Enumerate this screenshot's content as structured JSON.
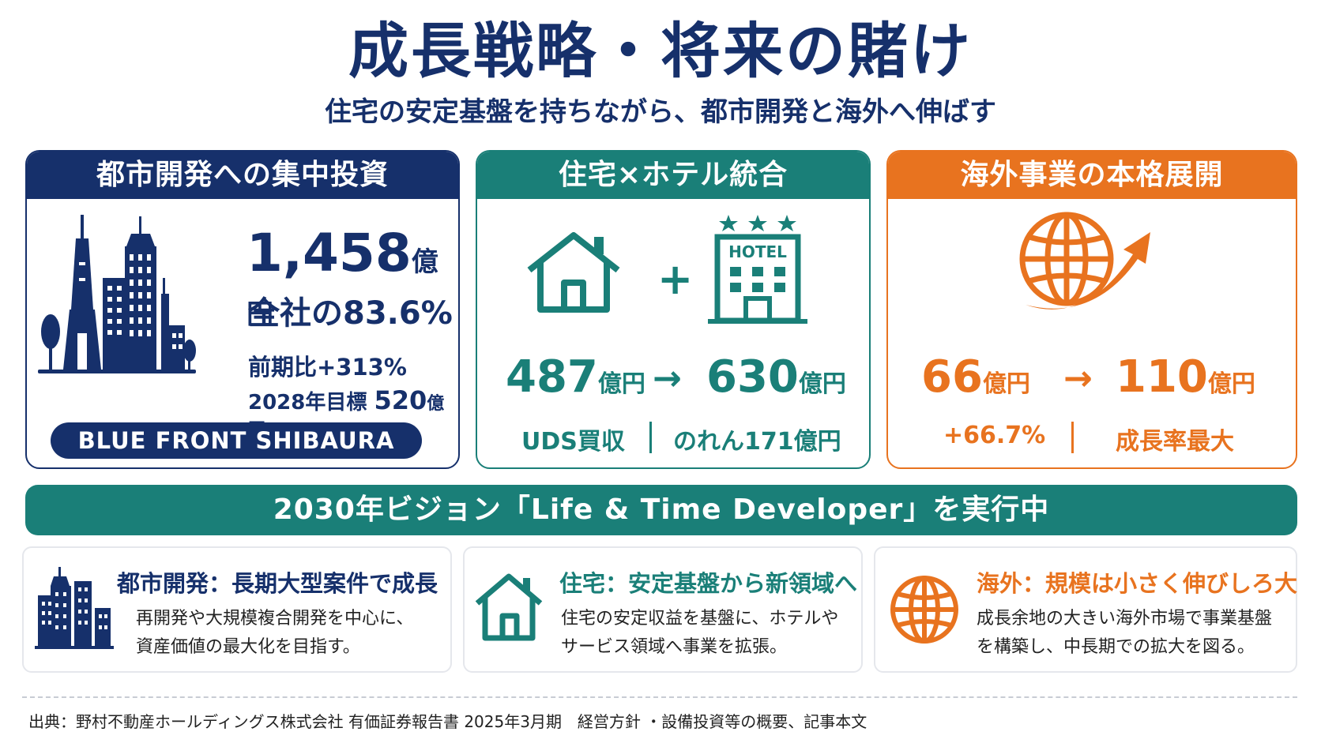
{
  "title": "成長戦略・将来の賭け",
  "subtitle": "住宅の安定基盤を持ちながら、都市開発と海外へ伸ばす",
  "colors": {
    "navy": "#16306b",
    "teal": "#1a7f78",
    "orange": "#e8731f"
  },
  "card_urban": {
    "header": "都市開発への集中投資",
    "icon": "city-skyline-icon",
    "amount": "1,458",
    "amount_unit": "億円",
    "share": "全社の83.6%",
    "yoy": "前期比+313%",
    "target_label": "2028年目標",
    "target_value": "520",
    "target_unit": "億円",
    "badge": "BLUE FRONT SHIBAURA"
  },
  "card_housing": {
    "header": "住宅×ホテル統合",
    "icons": [
      "house-icon",
      "hotel-icon"
    ],
    "plus": "+",
    "hotel_sign": "HOTEL",
    "from_value": "487",
    "from_unit": "億円",
    "arrow": "→",
    "to_value": "630",
    "to_unit": "億円",
    "note_left": "UDS買収",
    "note_right": "のれん171億円"
  },
  "card_overseas": {
    "header": "海外事業の本格展開",
    "icon": "globe-growth-icon",
    "from_value": "66",
    "from_unit": "億円",
    "arrow": "→",
    "to_value": "110",
    "to_unit": "億円",
    "note_left": "+66.7%",
    "note_right": "成長率最大"
  },
  "vision": "2030年ビジョン「Life & Time Developer」を実行中",
  "bottom": [
    {
      "title": "都市開発：長期大型案件で成長",
      "body": [
        "再開発や大規模複合開発を中心に、",
        "資産価値の最大化を目指す。"
      ],
      "icon": "buildings-icon"
    },
    {
      "title": "住宅：安定基盤から新領域へ",
      "body": [
        "住宅の安定収益を基盤に、ホテルや",
        "サービス領域へ事業を拡張。"
      ],
      "icon": "house-icon"
    },
    {
      "title": "海外：規模は小さく伸びしろ大",
      "body": [
        "成長余地の大きい海外市場で事業基盤",
        "を構築し、中長期での拡大を図る。"
      ],
      "icon": "globe-icon"
    }
  ],
  "source": "出典：野村不動産ホールディングス株式会社 有価証券報告書 2025年3月期　経営方針 ・設備投資等の概要、記事本文"
}
